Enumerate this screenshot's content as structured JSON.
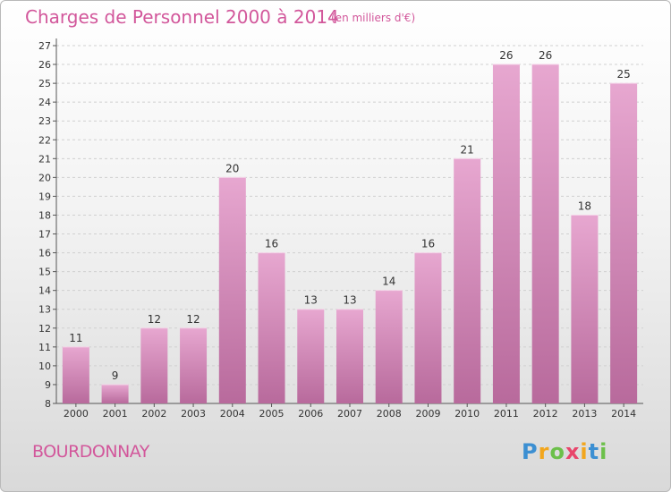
{
  "header": {
    "title": "Charges de Personnel 2000 à 2014",
    "subtitle": "(en milliers d'€)"
  },
  "footer": {
    "commune": "BOURDONNAY",
    "logo_letters": [
      {
        "char": "P",
        "color": "#3c8fd2"
      },
      {
        "char": "r",
        "color": "#f2a61d"
      },
      {
        "char": "o",
        "color": "#6cc04a"
      },
      {
        "char": "x",
        "color": "#e8456b"
      },
      {
        "char": "i",
        "color": "#f2a61d"
      },
      {
        "char": "t",
        "color": "#3c8fd2"
      },
      {
        "char": "i",
        "color": "#6cc04a"
      }
    ]
  },
  "chart_data": {
    "type": "bar",
    "title": "Charges de Personnel 2000 à 2014",
    "subtitle": "(en milliers d'€)",
    "categories": [
      "2000",
      "2001",
      "2002",
      "2003",
      "2004",
      "2005",
      "2006",
      "2007",
      "2008",
      "2009",
      "2010",
      "2011",
      "2012",
      "2013",
      "2014"
    ],
    "values": [
      11,
      9,
      12,
      12,
      20,
      16,
      13,
      13,
      14,
      16,
      21,
      26,
      26,
      18,
      25
    ],
    "ylim": [
      8,
      27
    ],
    "yticks": [
      8,
      9,
      10,
      11,
      12,
      13,
      14,
      15,
      16,
      17,
      18,
      19,
      20,
      21,
      22,
      23,
      24,
      25,
      26,
      27
    ],
    "grid": true,
    "bar_color": "#d98bbd",
    "bar_color_dark": "#b86a9c"
  }
}
